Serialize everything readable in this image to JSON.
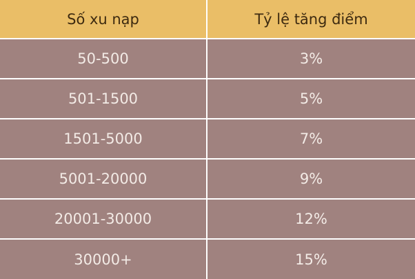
{
  "table": {
    "headers": [
      "Số xu nạp",
      "Tỷ lệ tăng điểm"
    ],
    "rows": [
      [
        "50-500",
        "3%"
      ],
      [
        "501-1500",
        "5%"
      ],
      [
        "1501-5000",
        "7%"
      ],
      [
        "5001-20000",
        "9%"
      ],
      [
        "20001-30000",
        "12%"
      ],
      [
        "30000+",
        "15%"
      ]
    ]
  },
  "colors": {
    "header_background": "#eabe67",
    "row_background": "#a0827f",
    "divider": "#ffffff"
  }
}
